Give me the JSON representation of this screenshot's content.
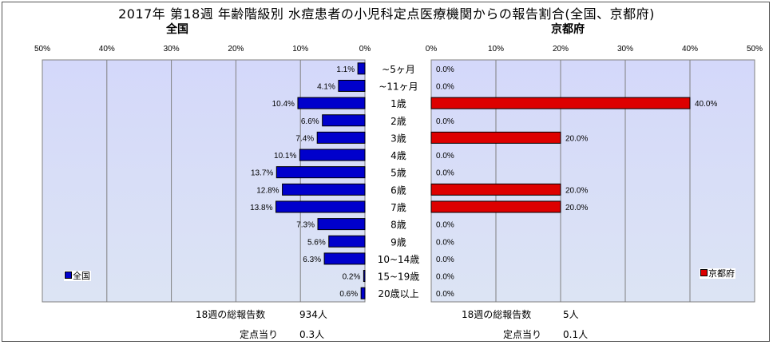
{
  "title": "2017年 第18週 年齢階級別 水痘患者の小児科定点医療機関からの報告割合(全国、京都府)",
  "colors": {
    "national": "#0000CC",
    "kyoto": "#DD0000",
    "plot_bg_top": "#D4D8FA",
    "plot_bg_bottom": "#DCE4F4"
  },
  "chart_data": [
    {
      "type": "bar",
      "orientation": "horizontal-reversed",
      "title": "全国",
      "series": [
        {
          "name": "全国",
          "values": [
            1.1,
            4.1,
            10.4,
            6.6,
            7.4,
            10.1,
            13.7,
            12.8,
            13.8,
            7.3,
            5.6,
            6.3,
            0.2,
            0.6
          ]
        }
      ],
      "categories": [
        "~5ヶ月",
        "~11ヶ月",
        "1歳",
        "2歳",
        "3歳",
        "4歳",
        "5歳",
        "6歳",
        "7歳",
        "8歳",
        "9歳",
        "10~14歳",
        "15~19歳",
        "20歳以上"
      ],
      "labels": [
        "1.1%",
        "4.1%",
        "10.4%",
        "6.6%",
        "7.4%",
        "10.1%",
        "13.7%",
        "12.8%",
        "13.8%",
        "7.3%",
        "5.6%",
        "6.3%",
        "0.2%",
        "0.6%"
      ],
      "xlim": [
        0,
        50
      ],
      "xticks": [
        "50%",
        "40%",
        "30%",
        "20%",
        "10%",
        "0%"
      ],
      "grid": true,
      "legend": "bottom-left"
    },
    {
      "type": "bar",
      "orientation": "horizontal",
      "title": "京都府",
      "series": [
        {
          "name": "京都府",
          "values": [
            0,
            0,
            40,
            0,
            20,
            0,
            0,
            20,
            20,
            0,
            0,
            0,
            0,
            0
          ]
        }
      ],
      "categories": [
        "~5ヶ月",
        "~11ヶ月",
        "1歳",
        "2歳",
        "3歳",
        "4歳",
        "5歳",
        "6歳",
        "7歳",
        "8歳",
        "9歳",
        "10~14歳",
        "15~19歳",
        "20歳以上"
      ],
      "labels": [
        "0.0%",
        "0.0%",
        "40.0%",
        "0.0%",
        "20.0%",
        "0.0%",
        "0.0%",
        "20.0%",
        "20.0%",
        "0.0%",
        "0.0%",
        "0.0%",
        "0.0%",
        "0.0%"
      ],
      "xlim": [
        0,
        50
      ],
      "xticks": [
        "0%",
        "10%",
        "20%",
        "30%",
        "40%",
        "50%"
      ],
      "grid": true,
      "legend": "bottom-right"
    }
  ],
  "footer": {
    "national": {
      "total_label": "18週の総報告数",
      "total_value": "934人",
      "per_label": "定点当り",
      "per_value": "0.3人"
    },
    "kyoto": {
      "total_label": "18週の総報告数",
      "total_value": "5人",
      "per_label": "定点当り",
      "per_value": "0.1人"
    }
  }
}
